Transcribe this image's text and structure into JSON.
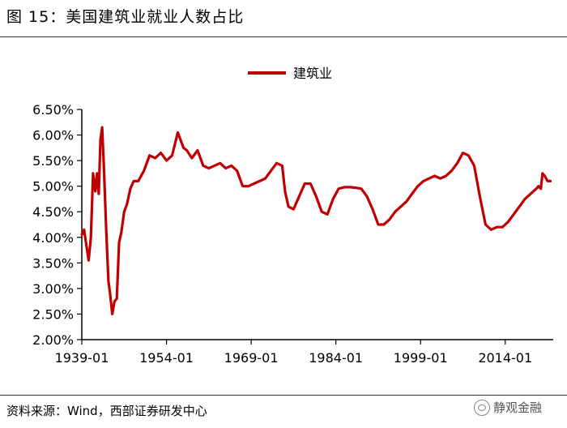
{
  "header": {
    "title": "图 15：美国建筑业就业人数占比"
  },
  "footer": {
    "source": "资料来源：Wind，西部证券研发中心",
    "watermark": "静观金融"
  },
  "colors": {
    "series": "#c00000",
    "axis": "#000000"
  },
  "chart_data": {
    "type": "line",
    "title": "",
    "xlabel": "",
    "ylabel": "",
    "x_ticks": [
      "1939-01",
      "1954-01",
      "1969-01",
      "1984-01",
      "1999-01",
      "2014-01"
    ],
    "y_ticks": [
      "2.00%",
      "2.50%",
      "3.00%",
      "3.50%",
      "4.00%",
      "4.50%",
      "5.00%",
      "5.50%",
      "6.00%",
      "6.50%"
    ],
    "ylim": [
      2.0,
      6.5
    ],
    "xlim": [
      1939.0,
      2022.5
    ],
    "legend": {
      "position": "top-center",
      "entries": [
        "建筑业"
      ]
    },
    "grid": false,
    "series": [
      {
        "name": "建筑业",
        "x": [
          1939.0,
          1939.4,
          1939.8,
          1940.2,
          1940.6,
          1941.0,
          1941.4,
          1941.7,
          1942.0,
          1942.3,
          1942.6,
          1942.9,
          1943.3,
          1943.7,
          1944.0,
          1944.4,
          1944.8,
          1945.2,
          1945.6,
          1946.0,
          1946.5,
          1947.0,
          1947.6,
          1948.2,
          1949.0,
          1950.0,
          1951.0,
          1952.0,
          1953.0,
          1954.0,
          1955.0,
          1956.0,
          1957.0,
          1957.6,
          1958.5,
          1959.5,
          1960.5,
          1961.5,
          1962.5,
          1963.5,
          1964.5,
          1965.5,
          1966.5,
          1967.5,
          1968.5,
          1969.5,
          1970.5,
          1971.5,
          1972.5,
          1973.5,
          1974.5,
          1975.0,
          1975.6,
          1976.5,
          1977.5,
          1978.5,
          1979.5,
          1980.5,
          1981.5,
          1982.5,
          1983.5,
          1984.5,
          1985.5,
          1986.5,
          1987.5,
          1988.5,
          1989.5,
          1990.5,
          1991.5,
          1992.5,
          1993.5,
          1994.5,
          1995.5,
          1996.5,
          1997.5,
          1998.5,
          1999.5,
          2000.5,
          2001.5,
          2002.5,
          2003.5,
          2004.5,
          2005.5,
          2006.5,
          2007.5,
          2008.5,
          2009.5,
          2010.5,
          2011.5,
          2012.5,
          2013.5,
          2014.5,
          2015.5,
          2016.5,
          2017.5,
          2018.5,
          2019.5,
          2019.9,
          2020.3,
          2020.6,
          2021.0,
          2021.5,
          2022.0
        ],
        "values": [
          4.05,
          4.15,
          3.85,
          3.55,
          4.0,
          5.25,
          4.9,
          5.25,
          4.85,
          5.9,
          6.15,
          5.4,
          4.2,
          3.15,
          2.9,
          2.5,
          2.75,
          2.8,
          3.9,
          4.1,
          4.5,
          4.65,
          4.95,
          5.1,
          5.1,
          5.3,
          5.6,
          5.55,
          5.65,
          5.5,
          5.6,
          6.05,
          5.75,
          5.7,
          5.55,
          5.7,
          5.4,
          5.35,
          5.4,
          5.45,
          5.35,
          5.4,
          5.3,
          5.0,
          5.0,
          5.05,
          5.1,
          5.15,
          5.3,
          5.45,
          5.4,
          4.9,
          4.6,
          4.55,
          4.8,
          5.05,
          5.05,
          4.8,
          4.5,
          4.45,
          4.75,
          4.95,
          4.98,
          4.98,
          4.97,
          4.95,
          4.8,
          4.55,
          4.25,
          4.25,
          4.35,
          4.5,
          4.6,
          4.7,
          4.85,
          5.0,
          5.1,
          5.15,
          5.2,
          5.15,
          5.2,
          5.3,
          5.45,
          5.65,
          5.6,
          5.4,
          4.8,
          4.25,
          4.15,
          4.2,
          4.2,
          4.3,
          4.45,
          4.6,
          4.75,
          4.85,
          4.95,
          5.0,
          4.95,
          5.25,
          5.2,
          5.1,
          5.1
        ]
      }
    ]
  }
}
